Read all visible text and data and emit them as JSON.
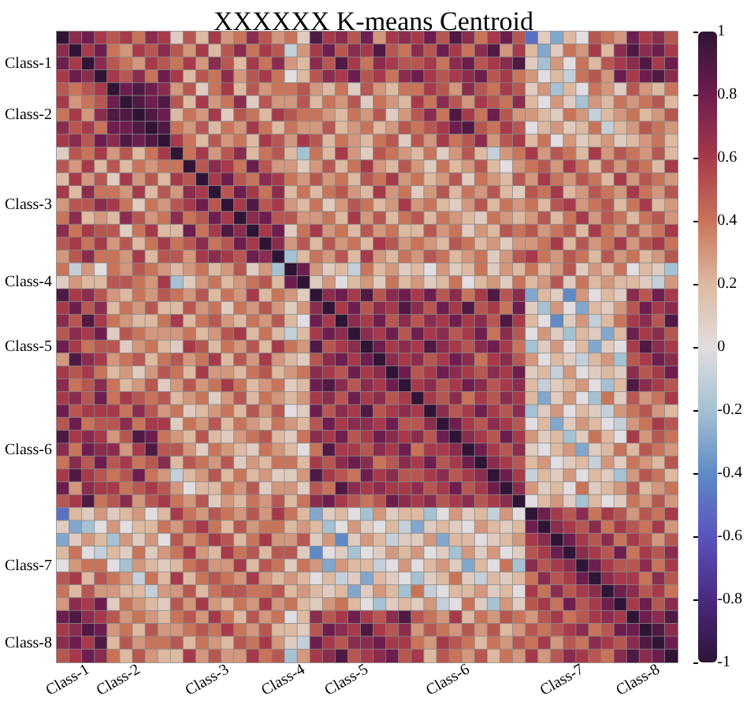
{
  "chart_data": {
    "type": "heatmap",
    "title": "XXXXXX K-means Centroid",
    "categories": [
      null,
      null,
      "Class-1",
      null,
      null,
      null,
      "Class-2",
      null,
      null,
      null,
      null,
      null,
      null,
      "Class-3",
      null,
      null,
      null,
      null,
      null,
      "Class-4",
      null,
      null,
      null,
      null,
      "Class-5",
      null,
      null,
      null,
      null,
      null,
      null,
      null,
      "Class-6",
      null,
      null,
      null,
      null,
      null,
      null,
      null,
      null,
      "Class-7",
      null,
      null,
      null,
      null,
      null,
      "Class-8",
      null
    ],
    "y_categories": [
      null,
      null,
      "Class-1",
      null,
      null,
      null,
      "Class-2",
      null,
      null,
      null,
      null,
      null,
      null,
      "Class-3",
      null,
      null,
      null,
      null,
      null,
      "Class-4",
      null,
      null,
      null,
      null,
      "Class-5",
      null,
      null,
      null,
      null,
      null,
      null,
      null,
      "Class-6",
      null,
      null,
      null,
      null,
      null,
      null,
      null,
      null,
      "Class-7",
      null,
      null,
      null,
      null,
      null,
      "Class-8",
      null
    ],
    "clim": [
      -1,
      1
    ],
    "cticks": [
      -1,
      -0.8,
      -0.6,
      -0.4,
      -0.2,
      0,
      0.2,
      0.4,
      0.6,
      0.8,
      1
    ],
    "cells": [
      [
        1,
        0.7,
        0.8,
        0.6,
        0.5,
        0.6,
        0.4,
        0.7,
        0.6,
        0.1,
        0.5,
        0.2,
        0.6,
        0.3,
        0.4,
        0.7,
        0.5,
        0.3,
        0.4,
        0.1,
        0.9,
        0.6,
        0.7,
        0.5,
        0.8,
        0.3,
        0.6,
        0.7,
        0.6,
        0.8,
        0.5,
        0.9,
        0.7,
        0.4,
        0.6,
        0.8,
        0.5,
        -0.5,
        0.1,
        -0.3,
        0.2,
        0.0,
        0.5,
        0.4,
        0.3,
        0.8,
        0.6,
        0.7,
        0.5
      ],
      [
        0.7,
        1,
        0.6,
        0.8,
        0.4,
        0.3,
        0.6,
        0.5,
        0.7,
        0.5,
        0.3,
        0.6,
        0.2,
        0.5,
        0.7,
        0.4,
        0.6,
        0.5,
        -0.1,
        0.3,
        0.6,
        0.8,
        0.5,
        0.7,
        0.6,
        0.9,
        0.5,
        0.4,
        0.7,
        0.5,
        0.8,
        0.6,
        0.4,
        0.7,
        0.9,
        0.3,
        0.6,
        0.2,
        -0.3,
        0.1,
        0.4,
        0.3,
        0.6,
        0.2,
        0.7,
        0.9,
        0.7,
        0.8,
        0.6
      ],
      [
        0.8,
        0.6,
        1,
        0.7,
        0.5,
        0.4,
        0.3,
        0.6,
        0.5,
        0.4,
        0.6,
        0.3,
        0.7,
        0.5,
        0.2,
        0.6,
        0.4,
        0.7,
        0.3,
        0.2,
        0.7,
        0.5,
        0.9,
        0.6,
        0.4,
        0.7,
        0.6,
        0.5,
        0.5,
        0.6,
        0.4,
        0.7,
        0.8,
        0.5,
        0.6,
        0.7,
        0.9,
        0.1,
        -0.2,
        0.3,
        0.0,
        0.4,
        0.2,
        0.5,
        0.6,
        0.7,
        0.9,
        0.6,
        0.8
      ],
      [
        0.6,
        0.8,
        0.7,
        1,
        0.6,
        0.5,
        0.7,
        0.4,
        0.8,
        0.6,
        0.2,
        0.5,
        0.4,
        0.7,
        0.3,
        0.5,
        0.6,
        0.4,
        0.0,
        0.2,
        0.5,
        0.7,
        0.6,
        0.8,
        0.5,
        0.6,
        0.4,
        0.7,
        0.8,
        0.6,
        0.5,
        0.6,
        0.7,
        0.8,
        0.5,
        0.6,
        0.4,
        0.3,
        0.0,
        0.2,
        -0.1,
        0.4,
        0.5,
        0.3,
        0.8,
        0.6,
        0.8,
        0.9,
        0.7
      ],
      [
        0.5,
        0.4,
        0.5,
        0.6,
        1,
        0.8,
        0.9,
        0.8,
        0.7,
        0.3,
        0.5,
        0.1,
        0.4,
        0.6,
        0.2,
        0.5,
        0.3,
        0.4,
        0.4,
        0.5,
        0.3,
        0.2,
        0.4,
        0.1,
        0.5,
        0.3,
        0.2,
        0.4,
        0.4,
        0.6,
        0.5,
        0.3,
        0.7,
        0.5,
        0.4,
        0.6,
        0.5,
        0.1,
        0.3,
        -0.2,
        0.2,
        0.0,
        0.4,
        0.3,
        0.1,
        0.5,
        0.3,
        0.2,
        0.4
      ],
      [
        0.6,
        0.3,
        0.4,
        0.5,
        0.8,
        1,
        0.9,
        0.8,
        0.9,
        0.5,
        0.2,
        0.6,
        0.3,
        0.4,
        0.7,
        0.1,
        0.5,
        0.3,
        0.3,
        0.5,
        0.2,
        0.4,
        0.3,
        0.5,
        0.1,
        0.4,
        0.3,
        0.2,
        0.6,
        0.4,
        0.7,
        0.5,
        0.3,
        0.6,
        0.5,
        0.4,
        0.7,
        0.2,
        0.0,
        0.3,
        0.1,
        -0.2,
        0.3,
        0.2,
        0.4,
        0.3,
        0.4,
        0.5,
        0.2
      ],
      [
        0.4,
        0.6,
        0.3,
        0.7,
        0.9,
        0.9,
        1,
        0.9,
        0.8,
        0.2,
        0.4,
        0.3,
        0.6,
        0.1,
        0.5,
        0.4,
        0.2,
        0.6,
        0.5,
        0.4,
        0.4,
        0.3,
        0.2,
        0.4,
        0.3,
        0.5,
        0.1,
        0.3,
        0.5,
        0.7,
        0.4,
        0.9,
        0.6,
        0.4,
        0.8,
        0.5,
        0.3,
        0.3,
        0.2,
        0.1,
        0.4,
        0.3,
        -0.1,
        0.2,
        0.3,
        0.4,
        0.2,
        0.3,
        0.5
      ],
      [
        0.7,
        0.5,
        0.6,
        0.4,
        0.8,
        0.8,
        0.9,
        1,
        0.9,
        0.4,
        0.3,
        0.5,
        0.2,
        0.4,
        0.3,
        0.6,
        0.4,
        0.2,
        0.4,
        0.3,
        0.3,
        0.5,
        0.2,
        0.3,
        0.4,
        0.2,
        0.3,
        0.5,
        0.4,
        0.5,
        0.6,
        0.8,
        0.9,
        0.5,
        0.4,
        0.6,
        0.5,
        0.0,
        0.2,
        0.3,
        0.1,
        0.2,
        0.4,
        -0.1,
        0.2,
        0.3,
        0.5,
        0.4,
        0.3
      ],
      [
        0.6,
        0.7,
        0.5,
        0.8,
        0.7,
        0.9,
        0.8,
        0.9,
        1,
        0.6,
        0.4,
        0.2,
        0.5,
        0.3,
        0.4,
        0.2,
        0.6,
        0.5,
        0.3,
        0.6,
        0.5,
        0.2,
        0.4,
        0.3,
        0.2,
        0.4,
        0.5,
        0.1,
        0.5,
        0.3,
        0.6,
        0.4,
        0.5,
        0.7,
        0.3,
        0.5,
        0.6,
        0.2,
        0.4,
        0.0,
        0.3,
        0.1,
        0.2,
        0.3,
        0.1,
        0.2,
        0.3,
        0.4,
        0.2
      ],
      [
        0.1,
        0.5,
        0.4,
        0.6,
        0.3,
        0.5,
        0.2,
        0.4,
        0.6,
        1,
        0.4,
        0.6,
        0.3,
        0.5,
        0.7,
        0.2,
        0.4,
        0.5,
        0.2,
        -0.2,
        0.4,
        0.2,
        0.6,
        0.3,
        0.1,
        0.5,
        0.4,
        0.3,
        0.2,
        0.4,
        0.1,
        0.3,
        0.5,
        0.2,
        -0.1,
        0.3,
        0.4,
        0.6,
        0.3,
        0.5,
        0.4,
        0.2,
        0.6,
        0.3,
        0.5,
        0.4,
        0.3,
        0.5,
        0.2
      ],
      [
        0.5,
        0.3,
        0.6,
        0.2,
        0.5,
        0.2,
        0.4,
        0.3,
        0.4,
        0.4,
        1,
        0.5,
        0.7,
        0.6,
        0.4,
        0.8,
        0.5,
        0.3,
        0.3,
        0.1,
        0.3,
        0.5,
        0.2,
        0.4,
        0.6,
        0.3,
        0.2,
        0.5,
        0.3,
        0.1,
        0.4,
        0.2,
        0.3,
        0.5,
        0.2,
        0.0,
        0.3,
        0.4,
        0.5,
        0.3,
        0.6,
        0.4,
        0.2,
        0.5,
        0.3,
        0.5,
        0.4,
        0.2,
        0.6
      ],
      [
        0.2,
        0.6,
        0.3,
        0.5,
        0.1,
        0.6,
        0.3,
        0.5,
        0.2,
        0.6,
        0.5,
        1,
        0.6,
        0.8,
        0.5,
        0.4,
        0.7,
        0.6,
        0.4,
        0.3,
        0.5,
        0.3,
        0.4,
        0.2,
        0.5,
        0.4,
        0.6,
        0.3,
        0.4,
        0.2,
        0.3,
        0.5,
        0.1,
        0.4,
        0.3,
        0.2,
        0.5,
        0.3,
        0.6,
        0.4,
        0.3,
        0.5,
        0.4,
        0.2,
        0.6,
        0.3,
        0.5,
        0.4,
        0.3
      ],
      [
        0.6,
        0.2,
        0.7,
        0.4,
        0.4,
        0.3,
        0.6,
        0.2,
        0.5,
        0.3,
        0.7,
        0.6,
        1,
        0.5,
        0.8,
        0.6,
        0.4,
        0.7,
        0.2,
        0.4,
        0.2,
        0.4,
        0.5,
        0.3,
        0.2,
        0.6,
        0.3,
        0.4,
        0.1,
        0.3,
        0.5,
        0.2,
        0.4,
        0.3,
        0.5,
        0.2,
        0.1,
        0.5,
        0.4,
        0.6,
        0.2,
        0.3,
        0.5,
        0.4,
        0.3,
        0.6,
        0.4,
        0.3,
        0.5
      ],
      [
        0.3,
        0.5,
        0.5,
        0.7,
        0.6,
        0.4,
        0.1,
        0.4,
        0.3,
        0.5,
        0.6,
        0.8,
        0.5,
        1,
        0.6,
        0.9,
        0.5,
        0.6,
        0.3,
        0.2,
        0.4,
        0.1,
        0.3,
        0.5,
        0.4,
        0.2,
        0.3,
        0.6,
        0.3,
        0.4,
        0.2,
        0.1,
        0.3,
        0.5,
        0.2,
        0.4,
        0.3,
        0.4,
        0.2,
        0.5,
        0.6,
        0.3,
        0.4,
        0.5,
        0.2,
        0.4,
        0.6,
        0.2,
        0.3
      ],
      [
        0.4,
        0.7,
        0.2,
        0.3,
        0.2,
        0.7,
        0.5,
        0.3,
        0.4,
        0.7,
        0.4,
        0.5,
        0.8,
        0.6,
        1,
        0.7,
        0.8,
        0.5,
        0.5,
        0.3,
        0.3,
        0.4,
        0.2,
        0.6,
        0.3,
        0.5,
        0.2,
        0.4,
        0.5,
        0.2,
        0.4,
        0.3,
        0.2,
        0.1,
        0.4,
        0.3,
        0.2,
        0.3,
        0.5,
        0.2,
        0.4,
        0.6,
        0.3,
        0.5,
        0.4,
        0.2,
        0.4,
        0.5,
        0.3
      ],
      [
        0.7,
        0.4,
        0.6,
        0.5,
        0.5,
        0.1,
        0.4,
        0.6,
        0.2,
        0.2,
        0.8,
        0.4,
        0.6,
        0.9,
        0.7,
        1,
        0.6,
        0.8,
        0.1,
        0.4,
        0.6,
        0.3,
        0.4,
        0.2,
        0.5,
        0.3,
        0.4,
        0.2,
        0.2,
        0.5,
        0.3,
        0.4,
        0.1,
        0.3,
        0.2,
        0.5,
        0.4,
        0.5,
        0.3,
        0.4,
        0.5,
        0.2,
        0.6,
        0.4,
        0.3,
        0.5,
        0.3,
        0.4,
        0.6
      ],
      [
        0.5,
        0.6,
        0.4,
        0.6,
        0.3,
        0.5,
        0.2,
        0.4,
        0.6,
        0.4,
        0.5,
        0.7,
        0.4,
        0.5,
        0.8,
        0.6,
        1,
        0.7,
        0.3,
        0.5,
        0.2,
        0.5,
        0.3,
        0.4,
        0.2,
        0.6,
        0.5,
        0.3,
        0.4,
        0.3,
        0.2,
        0.5,
        0.4,
        0.2,
        0.3,
        0.1,
        0.3,
        0.3,
        0.4,
        0.6,
        0.2,
        0.5,
        0.3,
        0.4,
        0.6,
        0.3,
        0.5,
        0.6,
        0.4
      ],
      [
        0.3,
        0.5,
        0.7,
        0.4,
        0.4,
        0.3,
        0.6,
        0.2,
        0.5,
        0.5,
        0.3,
        0.6,
        0.7,
        0.6,
        0.5,
        0.8,
        0.7,
        1,
        -0.2,
        0.2,
        0.4,
        0.3,
        0.5,
        0.2,
        0.6,
        0.3,
        0.2,
        0.4,
        0.3,
        0.5,
        0.4,
        0.2,
        0.3,
        0.4,
        0.1,
        0.3,
        0.5,
        0.6,
        0.4,
        0.3,
        0.5,
        0.4,
        0.2,
        0.5,
        0.3,
        0.4,
        0.2,
        0.3,
        0.5
      ],
      [
        0.4,
        -0.1,
        0.3,
        0.0,
        0.4,
        0.3,
        0.5,
        0.4,
        0.3,
        0.2,
        0.3,
        0.4,
        0.2,
        0.3,
        0.5,
        0.1,
        0.3,
        -0.2,
        1,
        0.8,
        0.3,
        0.1,
        0.2,
        -0.1,
        0.4,
        0.2,
        0.3,
        0.1,
        0.2,
        0.0,
        0.3,
        0.1,
        0.2,
        0.4,
        0.1,
        0.3,
        0.2,
        0.4,
        0.2,
        0.3,
        0.5,
        0.1,
        0.3,
        0.2,
        0.4,
        0.0,
        0.2,
        0.1,
        -0.2
      ],
      [
        0.1,
        0.3,
        0.2,
        0.2,
        0.5,
        0.5,
        0.4,
        0.3,
        0.6,
        -0.2,
        0.1,
        0.3,
        0.4,
        0.2,
        0.3,
        0.4,
        0.5,
        0.2,
        0.8,
        1,
        0.1,
        0.3,
        0.0,
        0.2,
        0.3,
        0.1,
        0.4,
        0.2,
        0.3,
        0.1,
        0.2,
        0.4,
        0.0,
        0.2,
        0.3,
        0.1,
        0.4,
        0.2,
        0.3,
        0.5,
        0.1,
        0.4,
        0.2,
        0.3,
        0.2,
        0.2,
        0.1,
        -0.1,
        0.3
      ],
      [
        0.9,
        0.6,
        0.7,
        0.5,
        0.3,
        0.2,
        0.4,
        0.3,
        0.5,
        0.4,
        0.3,
        0.5,
        0.2,
        0.4,
        0.3,
        0.6,
        0.2,
        0.4,
        0.3,
        0.1,
        1,
        0.7,
        0.8,
        0.6,
        0.9,
        0.5,
        0.7,
        0.8,
        0.6,
        0.8,
        0.5,
        0.7,
        0.4,
        0.6,
        0.9,
        0.5,
        0.7,
        -0.3,
        0.2,
        0.1,
        -0.4,
        0.3,
        0.0,
        0.2,
        0.1,
        0.7,
        0.5,
        0.8,
        0.6
      ],
      [
        0.6,
        0.8,
        0.5,
        0.7,
        0.2,
        0.4,
        0.3,
        0.5,
        0.2,
        0.2,
        0.5,
        0.3,
        0.4,
        0.1,
        0.4,
        0.3,
        0.5,
        0.3,
        0.1,
        0.3,
        0.7,
        1,
        0.6,
        0.8,
        0.5,
        0.7,
        0.6,
        0.9,
        0.7,
        0.5,
        0.8,
        0.6,
        0.9,
        0.5,
        0.6,
        0.4,
        0.8,
        0.1,
        -0.2,
        0.3,
        0.0,
        -0.3,
        0.2,
        0.1,
        0.3,
        0.5,
        0.8,
        0.6,
        0.7
      ],
      [
        0.7,
        0.5,
        0.9,
        0.6,
        0.4,
        0.3,
        0.2,
        0.2,
        0.4,
        0.6,
        0.2,
        0.4,
        0.5,
        0.3,
        0.2,
        0.4,
        0.3,
        0.5,
        0.2,
        0.0,
        0.8,
        0.6,
        1,
        0.7,
        0.6,
        0.8,
        0.5,
        0.7,
        0.5,
        0.7,
        0.6,
        0.8,
        0.6,
        0.7,
        0.5,
        0.9,
        0.6,
        0.2,
        0.0,
        -0.4,
        0.1,
        0.3,
        -0.1,
        0.2,
        0.4,
        0.6,
        0.7,
        0.5,
        0.9
      ],
      [
        0.5,
        0.7,
        0.6,
        0.8,
        0.1,
        0.5,
        0.4,
        0.3,
        0.3,
        0.3,
        0.4,
        0.2,
        0.3,
        0.5,
        0.6,
        0.2,
        0.4,
        0.2,
        -0.1,
        0.2,
        0.6,
        0.8,
        0.7,
        1,
        0.7,
        0.6,
        0.8,
        0.5,
        0.8,
        0.6,
        0.7,
        0.5,
        0.6,
        0.8,
        0.4,
        0.7,
        0.5,
        0.0,
        0.3,
        0.1,
        -0.2,
        0.2,
        0.1,
        -0.3,
        0.2,
        0.8,
        0.6,
        0.7,
        0.5
      ],
      [
        0.8,
        0.6,
        0.4,
        0.5,
        0.5,
        0.1,
        0.3,
        0.4,
        0.2,
        0.1,
        0.6,
        0.5,
        0.2,
        0.4,
        0.3,
        0.5,
        0.2,
        0.6,
        0.4,
        0.3,
        0.9,
        0.5,
        0.6,
        0.7,
        1,
        0.8,
        0.6,
        0.7,
        0.6,
        0.9,
        0.7,
        0.6,
        0.5,
        0.7,
        0.8,
        0.6,
        0.4,
        -0.2,
        0.1,
        0.3,
        0.0,
        0.2,
        -0.3,
        0.1,
        0.0,
        0.6,
        0.9,
        0.7,
        0.6
      ],
      [
        0.3,
        0.9,
        0.7,
        0.6,
        0.3,
        0.4,
        0.5,
        0.2,
        0.4,
        0.5,
        0.3,
        0.4,
        0.6,
        0.2,
        0.5,
        0.3,
        0.6,
        0.3,
        0.2,
        0.1,
        0.5,
        0.7,
        0.8,
        0.6,
        0.8,
        1,
        0.7,
        0.6,
        0.7,
        0.5,
        0.6,
        0.8,
        0.7,
        0.4,
        0.6,
        0.7,
        0.5,
        0.3,
        0.0,
        0.2,
        0.1,
        -0.1,
        0.2,
        0.3,
        -0.2,
        0.5,
        0.6,
        0.8,
        0.7
      ],
      [
        0.6,
        0.5,
        0.6,
        0.4,
        0.2,
        0.3,
        0.1,
        0.3,
        0.5,
        0.4,
        0.2,
        0.6,
        0.3,
        0.3,
        0.2,
        0.4,
        0.5,
        0.2,
        0.3,
        0.4,
        0.7,
        0.6,
        0.5,
        0.8,
        0.6,
        0.7,
        1,
        0.8,
        0.5,
        0.6,
        0.8,
        0.7,
        0.6,
        0.5,
        0.7,
        0.6,
        0.8,
        0.1,
        0.2,
        -0.1,
        0.3,
        0.0,
        0.1,
        0.2,
        0.1,
        0.7,
        0.5,
        0.6,
        0.8
      ],
      [
        0.7,
        0.4,
        0.5,
        0.7,
        0.4,
        0.2,
        0.3,
        0.5,
        0.1,
        0.3,
        0.5,
        0.3,
        0.4,
        0.6,
        0.4,
        0.2,
        0.3,
        0.4,
        0.1,
        0.2,
        0.8,
        0.9,
        0.7,
        0.5,
        0.7,
        0.6,
        0.8,
        1,
        0.6,
        0.7,
        0.5,
        0.6,
        0.8,
        0.7,
        0.5,
        0.6,
        0.7,
        0.2,
        -0.1,
        0.1,
        0.2,
        0.3,
        0.0,
        -0.2,
        0.2,
        0.9,
        0.7,
        0.6,
        0.5
      ],
      [
        0.6,
        0.7,
        0.5,
        0.8,
        0.4,
        0.6,
        0.5,
        0.4,
        0.5,
        0.2,
        0.3,
        0.4,
        0.1,
        0.3,
        0.5,
        0.2,
        0.4,
        0.3,
        0.2,
        0.3,
        0.6,
        0.7,
        0.5,
        0.8,
        0.6,
        0.7,
        0.5,
        0.6,
        1,
        0.6,
        0.5,
        0.7,
        0.4,
        0.6,
        0.5,
        0.7,
        0.6,
        0.2,
        -0.3,
        0.1,
        0.3,
        0.0,
        -0.2,
        0.4,
        0.1,
        0.5,
        0.3,
        0.4,
        0.6
      ],
      [
        0.8,
        0.5,
        0.6,
        0.6,
        0.6,
        0.4,
        0.7,
        0.5,
        0.3,
        0.4,
        0.1,
        0.2,
        0.3,
        0.4,
        0.2,
        0.5,
        0.3,
        0.5,
        0.0,
        0.1,
        0.8,
        0.5,
        0.7,
        0.6,
        0.9,
        0.5,
        0.6,
        0.7,
        0.6,
        1,
        0.7,
        0.5,
        0.6,
        0.8,
        0.6,
        0.5,
        0.7,
        -0.2,
        0.1,
        0.3,
        0.0,
        0.2,
        0.1,
        -0.1,
        0.3,
        0.4,
        0.5,
        0.3,
        0.2
      ],
      [
        0.5,
        0.8,
        0.4,
        0.5,
        0.5,
        0.7,
        0.4,
        0.6,
        0.6,
        0.1,
        0.4,
        0.3,
        0.5,
        0.2,
        0.4,
        0.3,
        0.2,
        0.4,
        0.3,
        0.2,
        0.5,
        0.8,
        0.6,
        0.7,
        0.7,
        0.6,
        0.8,
        0.5,
        0.5,
        0.7,
        1,
        0.8,
        0.6,
        0.5,
        0.7,
        0.6,
        0.5,
        0.0,
        0.2,
        -0.3,
        0.1,
        0.3,
        0.2,
        0.0,
        -0.1,
        0.3,
        0.4,
        0.6,
        0.5
      ],
      [
        0.9,
        0.6,
        0.7,
        0.6,
        0.3,
        0.5,
        0.9,
        0.8,
        0.4,
        0.3,
        0.2,
        0.5,
        0.2,
        0.1,
        0.3,
        0.4,
        0.5,
        0.2,
        0.1,
        0.4,
        0.7,
        0.6,
        0.8,
        0.5,
        0.6,
        0.8,
        0.7,
        0.6,
        0.7,
        0.5,
        0.8,
        1,
        0.7,
        0.6,
        0.5,
        0.8,
        0.6,
        0.3,
        0.1,
        0.2,
        -0.2,
        0.1,
        0.4,
        0.2,
        0.0,
        0.6,
        0.3,
        0.5,
        0.4
      ],
      [
        0.7,
        0.4,
        0.8,
        0.7,
        0.7,
        0.3,
        0.6,
        0.9,
        0.5,
        0.5,
        0.3,
        0.1,
        0.4,
        0.3,
        0.2,
        0.1,
        0.4,
        0.3,
        0.2,
        0.0,
        0.4,
        0.9,
        0.6,
        0.6,
        0.5,
        0.7,
        0.6,
        0.8,
        0.4,
        0.6,
        0.6,
        0.7,
        1,
        0.8,
        0.6,
        0.5,
        0.7,
        0.1,
        0.0,
        0.2,
        0.3,
        -0.3,
        0.1,
        0.2,
        0.4,
        0.2,
        0.5,
        0.4,
        0.3
      ],
      [
        0.4,
        0.7,
        0.5,
        0.8,
        0.5,
        0.6,
        0.4,
        0.5,
        0.7,
        0.2,
        0.5,
        0.4,
        0.3,
        0.5,
        0.1,
        0.3,
        0.2,
        0.4,
        0.4,
        0.2,
        0.6,
        0.5,
        0.7,
        0.8,
        0.7,
        0.4,
        0.5,
        0.7,
        0.6,
        0.8,
        0.5,
        0.6,
        0.8,
        1,
        0.7,
        0.6,
        0.5,
        0.2,
        0.3,
        0.0,
        0.1,
        0.2,
        -0.1,
        0.3,
        0.1,
        0.4,
        0.3,
        0.2,
        0.5
      ],
      [
        0.6,
        0.9,
        0.6,
        0.5,
        0.4,
        0.5,
        0.8,
        0.4,
        0.3,
        -0.1,
        0.2,
        0.3,
        0.5,
        0.2,
        0.4,
        0.2,
        0.3,
        0.1,
        0.1,
        0.3,
        0.9,
        0.6,
        0.5,
        0.4,
        0.8,
        0.6,
        0.7,
        0.5,
        0.5,
        0.6,
        0.7,
        0.5,
        0.6,
        0.7,
        1,
        0.8,
        0.6,
        -0.1,
        0.2,
        0.1,
        0.3,
        0.0,
        0.2,
        0.1,
        -0.2,
        0.3,
        0.5,
        0.4,
        0.2
      ],
      [
        0.8,
        0.3,
        0.7,
        0.6,
        0.6,
        0.4,
        0.5,
        0.6,
        0.5,
        0.3,
        0.0,
        0.2,
        0.2,
        0.4,
        0.3,
        0.5,
        0.1,
        0.3,
        0.3,
        0.1,
        0.5,
        0.4,
        0.9,
        0.7,
        0.6,
        0.7,
        0.6,
        0.6,
        0.7,
        0.5,
        0.6,
        0.8,
        0.5,
        0.6,
        0.8,
        1,
        0.7,
        0.3,
        0.1,
        0.2,
        0.0,
        0.4,
        0.1,
        0.2,
        0.3,
        0.5,
        0.2,
        0.3,
        0.4
      ],
      [
        0.5,
        0.6,
        0.9,
        0.4,
        0.5,
        0.7,
        0.3,
        0.5,
        0.6,
        0.4,
        0.3,
        0.5,
        0.1,
        0.3,
        0.2,
        0.4,
        0.3,
        0.5,
        0.2,
        0.4,
        0.7,
        0.8,
        0.6,
        0.5,
        0.4,
        0.5,
        0.8,
        0.7,
        0.6,
        0.7,
        0.5,
        0.6,
        0.7,
        0.5,
        0.6,
        0.7,
        1,
        0.0,
        0.2,
        0.3,
        0.1,
        -0.2,
        0.2,
        0.0,
        0.1,
        0.4,
        0.3,
        0.5,
        0.3
      ],
      [
        -0.5,
        0.2,
        0.1,
        0.3,
        0.1,
        0.2,
        0.3,
        0.0,
        0.2,
        0.6,
        0.4,
        0.3,
        0.5,
        0.4,
        0.3,
        0.5,
        0.3,
        0.6,
        0.4,
        0.2,
        -0.3,
        0.1,
        0.2,
        0.0,
        -0.2,
        0.3,
        0.1,
        0.2,
        0.2,
        -0.2,
        0.0,
        0.3,
        0.1,
        0.2,
        -0.1,
        0.3,
        0.0,
        1,
        0.8,
        0.6,
        0.5,
        0.7,
        0.4,
        0.6,
        0.5,
        0.3,
        0.5,
        0.4,
        0.6
      ],
      [
        0.1,
        -0.3,
        -0.2,
        0.0,
        0.3,
        0.0,
        0.2,
        0.2,
        0.4,
        0.3,
        0.5,
        0.6,
        0.4,
        0.2,
        0.5,
        0.3,
        0.4,
        0.4,
        0.2,
        0.3,
        0.2,
        -0.2,
        0.0,
        0.3,
        0.1,
        0.0,
        0.2,
        -0.1,
        -0.3,
        0.1,
        0.2,
        0.1,
        0.0,
        0.3,
        0.2,
        0.1,
        0.2,
        0.8,
        1,
        0.7,
        0.6,
        0.5,
        0.7,
        0.4,
        0.6,
        0.5,
        0.4,
        0.6,
        0.3
      ],
      [
        -0.3,
        0.1,
        0.3,
        0.2,
        -0.2,
        0.3,
        0.1,
        0.3,
        0.0,
        0.5,
        0.3,
        0.4,
        0.6,
        0.5,
        0.2,
        0.4,
        0.6,
        0.3,
        0.3,
        0.5,
        0.1,
        0.3,
        -0.4,
        0.1,
        0.3,
        0.2,
        -0.1,
        0.1,
        0.1,
        0.3,
        -0.3,
        0.2,
        0.2,
        0.0,
        0.1,
        0.2,
        0.3,
        0.6,
        0.7,
        1,
        0.8,
        0.6,
        0.5,
        0.7,
        0.4,
        0.6,
        0.5,
        0.3,
        0.5
      ],
      [
        0.2,
        0.4,
        0.0,
        -0.1,
        0.2,
        0.1,
        0.4,
        0.1,
        0.3,
        0.4,
        0.6,
        0.3,
        0.2,
        0.6,
        0.4,
        0.5,
        0.2,
        0.5,
        0.5,
        0.1,
        -0.4,
        0.0,
        0.1,
        -0.2,
        0.0,
        0.1,
        0.3,
        0.2,
        0.3,
        0.0,
        0.1,
        -0.2,
        0.3,
        0.1,
        0.3,
        0.0,
        0.1,
        0.5,
        0.6,
        0.8,
        1,
        0.7,
        0.6,
        0.5,
        0.8,
        0.4,
        0.6,
        0.5,
        0.7
      ],
      [
        0.0,
        0.3,
        0.4,
        0.4,
        0.0,
        -0.2,
        0.3,
        0.2,
        0.1,
        0.2,
        0.4,
        0.5,
        0.3,
        0.3,
        0.6,
        0.2,
        0.5,
        0.4,
        0.1,
        0.4,
        0.3,
        -0.3,
        0.3,
        0.2,
        0.2,
        -0.1,
        0.0,
        0.3,
        0.0,
        0.2,
        0.3,
        0.1,
        -0.3,
        0.2,
        0.0,
        0.4,
        -0.2,
        0.7,
        0.5,
        0.6,
        0.7,
        1,
        0.8,
        0.6,
        0.5,
        0.5,
        0.7,
        0.4,
        0.6
      ],
      [
        0.5,
        0.6,
        0.2,
        0.5,
        0.4,
        0.3,
        -0.1,
        0.4,
        0.2,
        0.6,
        0.2,
        0.4,
        0.5,
        0.4,
        0.3,
        0.6,
        0.3,
        0.2,
        0.3,
        0.2,
        0.0,
        0.2,
        -0.1,
        0.1,
        -0.3,
        0.2,
        0.1,
        0.0,
        -0.2,
        0.1,
        0.2,
        0.4,
        0.1,
        -0.1,
        0.2,
        0.1,
        0.2,
        0.4,
        0.7,
        0.5,
        0.6,
        0.8,
        1,
        0.7,
        0.6,
        0.6,
        0.4,
        0.7,
        0.5
      ],
      [
        0.4,
        0.2,
        0.5,
        0.3,
        0.3,
        0.2,
        0.2,
        -0.1,
        0.3,
        0.3,
        0.5,
        0.2,
        0.4,
        0.5,
        0.5,
        0.4,
        0.4,
        0.5,
        0.2,
        0.3,
        0.2,
        0.1,
        0.2,
        -0.3,
        0.1,
        0.3,
        0.2,
        -0.2,
        0.4,
        -0.1,
        0.0,
        0.2,
        0.2,
        0.3,
        0.1,
        0.2,
        0.0,
        0.6,
        0.4,
        0.7,
        0.5,
        0.6,
        0.7,
        1,
        0.8,
        0.7,
        0.5,
        0.6,
        0.4
      ],
      [
        0.3,
        0.7,
        0.6,
        0.8,
        0.1,
        0.4,
        0.3,
        0.2,
        0.1,
        0.5,
        0.3,
        0.6,
        0.3,
        0.2,
        0.4,
        0.3,
        0.6,
        0.3,
        0.4,
        0.2,
        0.1,
        0.3,
        0.4,
        0.2,
        0.0,
        -0.2,
        0.1,
        0.2,
        0.1,
        0.3,
        -0.1,
        0.0,
        0.4,
        0.1,
        -0.2,
        0.3,
        0.1,
        0.5,
        0.6,
        0.4,
        0.8,
        0.5,
        0.6,
        0.8,
        1,
        0.6,
        0.8,
        0.5,
        0.7
      ],
      [
        0.8,
        0.9,
        0.7,
        0.6,
        0.5,
        0.3,
        0.4,
        0.3,
        0.2,
        0.4,
        0.5,
        0.3,
        0.6,
        0.4,
        0.2,
        0.5,
        0.3,
        0.4,
        0.0,
        0.2,
        0.7,
        0.5,
        0.6,
        0.8,
        0.6,
        0.5,
        0.7,
        0.9,
        0.5,
        0.4,
        0.3,
        0.6,
        0.2,
        0.4,
        0.3,
        0.5,
        0.4,
        0.3,
        0.5,
        0.6,
        0.4,
        0.5,
        0.6,
        0.7,
        0.6,
        1,
        0.8,
        0.7,
        0.9
      ],
      [
        0.6,
        0.7,
        0.9,
        0.8,
        0.3,
        0.4,
        0.2,
        0.5,
        0.3,
        0.3,
        0.4,
        0.5,
        0.4,
        0.6,
        0.4,
        0.3,
        0.5,
        0.2,
        0.2,
        0.1,
        0.5,
        0.8,
        0.7,
        0.6,
        0.9,
        0.6,
        0.5,
        0.7,
        0.3,
        0.5,
        0.4,
        0.3,
        0.5,
        0.3,
        0.5,
        0.2,
        0.3,
        0.5,
        0.4,
        0.5,
        0.6,
        0.7,
        0.4,
        0.5,
        0.8,
        0.8,
        1,
        0.9,
        0.7
      ],
      [
        0.7,
        0.8,
        0.6,
        0.9,
        0.2,
        0.5,
        0.3,
        0.4,
        0.4,
        0.5,
        0.2,
        0.4,
        0.3,
        0.2,
        0.5,
        0.4,
        0.6,
        0.3,
        0.1,
        -0.1,
        0.8,
        0.6,
        0.5,
        0.7,
        0.7,
        0.8,
        0.6,
        0.6,
        0.4,
        0.3,
        0.6,
        0.5,
        0.4,
        0.2,
        0.4,
        0.3,
        0.5,
        0.4,
        0.6,
        0.3,
        0.5,
        0.4,
        0.7,
        0.6,
        0.5,
        0.7,
        0.9,
        1,
        0.8
      ],
      [
        0.5,
        0.6,
        0.8,
        0.7,
        0.4,
        0.2,
        0.5,
        0.3,
        0.2,
        0.2,
        0.6,
        0.3,
        0.5,
        0.3,
        0.3,
        0.6,
        0.4,
        0.5,
        -0.2,
        0.3,
        0.6,
        0.7,
        0.9,
        0.5,
        0.6,
        0.7,
        0.8,
        0.5,
        0.6,
        0.2,
        0.5,
        0.4,
        0.3,
        0.5,
        0.2,
        0.4,
        0.3,
        0.6,
        0.3,
        0.5,
        0.7,
        0.6,
        0.5,
        0.4,
        0.7,
        0.9,
        0.7,
        0.8,
        1
      ]
    ]
  }
}
